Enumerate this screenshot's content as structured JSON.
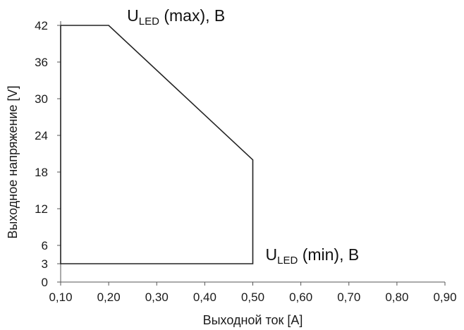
{
  "chart_data": {
    "type": "line",
    "xlabel": "Выходной ток [А]",
    "ylabel": "Выходное напряжение [V]",
    "xlim": [
      0.1,
      0.9
    ],
    "ylim": [
      0,
      42
    ],
    "x_ticks": [
      "0,10",
      "0,20",
      "0,30",
      "0,40",
      "0,50",
      "0,60",
      "0,70",
      "0,80",
      "0,90"
    ],
    "x_tick_values": [
      0.1,
      0.2,
      0.3,
      0.4,
      0.5,
      0.6,
      0.7,
      0.8,
      0.9
    ],
    "y_ticks": [
      "0",
      "3",
      "6",
      "12",
      "18",
      "24",
      "30",
      "36",
      "42"
    ],
    "y_tick_values": [
      0,
      3,
      6,
      12,
      18,
      24,
      30,
      36,
      42
    ],
    "grid": false,
    "series": [
      {
        "x": [
          0.1,
          0.2,
          0.5,
          0.5,
          0.1,
          0.1
        ],
        "y": [
          42,
          42,
          20,
          3,
          3,
          42
        ],
        "color": "#222222"
      }
    ],
    "annotations": [
      {
        "main": "U",
        "sub": "LED",
        "rest": " (max),  В",
        "x": 0.2,
        "y": 42
      },
      {
        "main": "U",
        "sub": "LED",
        "rest": " (min),  В",
        "x": 0.5,
        "y": 3
      }
    ]
  }
}
